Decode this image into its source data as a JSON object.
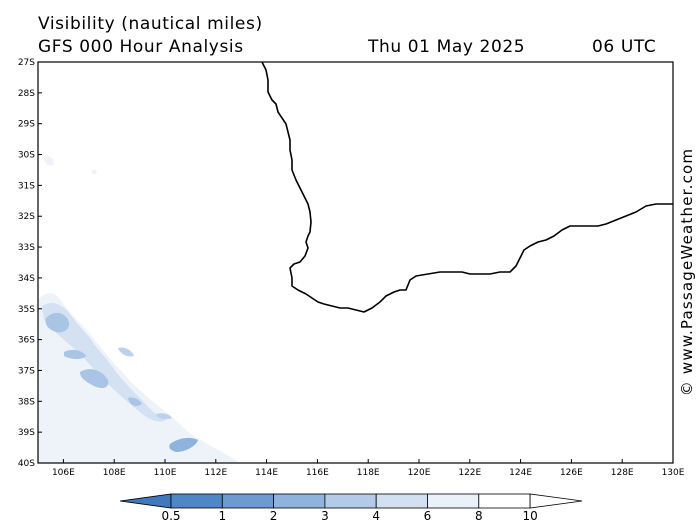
{
  "header": {
    "title": "Visibility (nautical miles)",
    "subtitle": "GFS 000 Hour Analysis",
    "date": "Thu 01 May 2025",
    "time": "06 UTC"
  },
  "credit": "© www.PassageWeather.com",
  "map": {
    "lat_labels": [
      "27S",
      "28S",
      "29S",
      "30S",
      "31S",
      "32S",
      "33S",
      "34S",
      "35S",
      "36S",
      "37S",
      "38S",
      "39S",
      "40S"
    ],
    "lon_labels": [
      "106E",
      "108E",
      "110E",
      "112E",
      "114E",
      "116E",
      "118E",
      "120E",
      "122E",
      "124E",
      "126E",
      "128E",
      "130E"
    ],
    "lat_range": [
      -27,
      -40
    ],
    "lon_range": [
      105,
      130
    ],
    "land_outline_color": "#000000"
  },
  "colorbar": {
    "labels": [
      "0.5",
      "1",
      "2",
      "3",
      "4",
      "6",
      "8",
      "10"
    ],
    "colors": [
      "#3f78bb",
      "#4f86c5",
      "#6d9bd1",
      "#8fb3dc",
      "#b3cbe7",
      "#d2e0f1",
      "#ebf1f9",
      "#ffffff"
    ]
  }
}
